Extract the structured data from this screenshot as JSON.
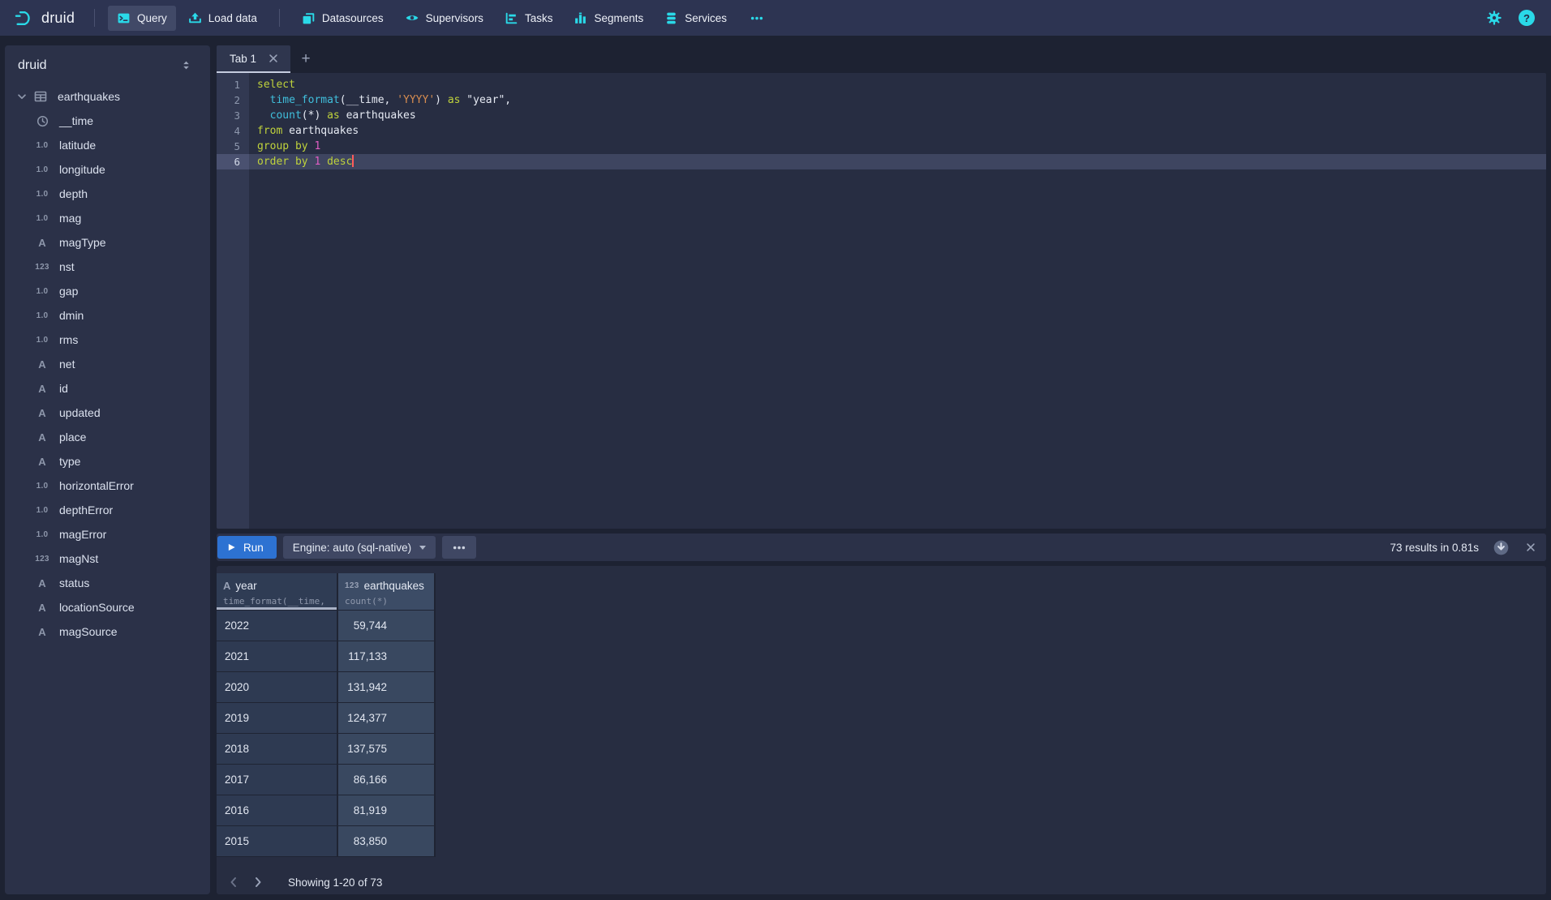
{
  "colors": {
    "accent_cyan": "#2ad9e8",
    "run_button_blue": "#2d72d2",
    "syntax_keyword": "#bfd23c",
    "syntax_function": "#40bfdc",
    "syntax_string": "#d78d50",
    "syntax_number": "#e05ec4",
    "cursor_red": "#ff5b5b"
  },
  "nav": {
    "brand": "druid",
    "items": [
      {
        "label": "Query",
        "icon": "console",
        "active": true,
        "group": 1
      },
      {
        "label": "Load data",
        "icon": "upload",
        "active": false,
        "group": 1
      },
      {
        "label": "Datasources",
        "icon": "datasources",
        "active": false,
        "group": 2
      },
      {
        "label": "Supervisors",
        "icon": "eye",
        "active": false,
        "group": 2
      },
      {
        "label": "Tasks",
        "icon": "gantt",
        "active": false,
        "group": 2
      },
      {
        "label": "Segments",
        "icon": "bar-chart",
        "active": false,
        "group": 2
      },
      {
        "label": "Services",
        "icon": "database",
        "active": false,
        "group": 2
      }
    ]
  },
  "sidebar": {
    "schema": "druid",
    "table": {
      "name": "earthquakes"
    },
    "columns": [
      {
        "name": "__time",
        "type": "time"
      },
      {
        "name": "latitude",
        "type": "float"
      },
      {
        "name": "longitude",
        "type": "float"
      },
      {
        "name": "depth",
        "type": "float"
      },
      {
        "name": "mag",
        "type": "float"
      },
      {
        "name": "magType",
        "type": "str"
      },
      {
        "name": "nst",
        "type": "int"
      },
      {
        "name": "gap",
        "type": "float"
      },
      {
        "name": "dmin",
        "type": "float"
      },
      {
        "name": "rms",
        "type": "float"
      },
      {
        "name": "net",
        "type": "str"
      },
      {
        "name": "id",
        "type": "str"
      },
      {
        "name": "updated",
        "type": "str"
      },
      {
        "name": "place",
        "type": "str"
      },
      {
        "name": "type",
        "type": "str"
      },
      {
        "name": "horizontalError",
        "type": "float"
      },
      {
        "name": "depthError",
        "type": "float"
      },
      {
        "name": "magError",
        "type": "float"
      },
      {
        "name": "magNst",
        "type": "int"
      },
      {
        "name": "status",
        "type": "str"
      },
      {
        "name": "locationSource",
        "type": "str"
      },
      {
        "name": "magSource",
        "type": "str"
      }
    ],
    "type_glyphs": {
      "float": "1.0",
      "int": "123",
      "str": "A"
    }
  },
  "editor": {
    "tab_label": "Tab 1",
    "active_line": 6,
    "lines": [
      [
        {
          "t": "kw",
          "v": "select"
        }
      ],
      [
        {
          "t": "pln",
          "v": "  "
        },
        {
          "t": "fn",
          "v": "time_format"
        },
        {
          "t": "pln",
          "v": "(__time, "
        },
        {
          "t": "str",
          "v": "'YYYY'"
        },
        {
          "t": "pln",
          "v": ") "
        },
        {
          "t": "kw",
          "v": "as"
        },
        {
          "t": "pln",
          "v": " \"year\","
        }
      ],
      [
        {
          "t": "pln",
          "v": "  "
        },
        {
          "t": "fn",
          "v": "count"
        },
        {
          "t": "pln",
          "v": "(*) "
        },
        {
          "t": "kw",
          "v": "as"
        },
        {
          "t": "pln",
          "v": " earthquakes"
        }
      ],
      [
        {
          "t": "kw",
          "v": "from"
        },
        {
          "t": "pln",
          "v": " earthquakes"
        }
      ],
      [
        {
          "t": "kw",
          "v": "group"
        },
        {
          "t": "pln",
          "v": " "
        },
        {
          "t": "kw",
          "v": "by"
        },
        {
          "t": "pln",
          "v": " "
        },
        {
          "t": "num",
          "v": "1"
        }
      ],
      [
        {
          "t": "kw",
          "v": "order"
        },
        {
          "t": "pln",
          "v": " "
        },
        {
          "t": "kw",
          "v": "by"
        },
        {
          "t": "pln",
          "v": " "
        },
        {
          "t": "num",
          "v": "1"
        },
        {
          "t": "pln",
          "v": " "
        },
        {
          "t": "kw",
          "v": "desc"
        }
      ]
    ]
  },
  "runbar": {
    "run_label": "Run",
    "engine_label": "Engine: auto (sql-native)",
    "result_summary": "73 results in 0.81s"
  },
  "results": {
    "columns": [
      {
        "name": "year",
        "type_glyph": "A",
        "expression": "time_format(__time, …",
        "sorted": true
      },
      {
        "name": "earthquakes",
        "type_glyph": "123",
        "expression": "count(*)",
        "sorted": false
      }
    ],
    "rows": [
      [
        "2022",
        "59,744"
      ],
      [
        "2021",
        "117,133"
      ],
      [
        "2020",
        "131,942"
      ],
      [
        "2019",
        "124,377"
      ],
      [
        "2018",
        "137,575"
      ],
      [
        "2017",
        "86,166"
      ],
      [
        "2016",
        "81,919"
      ],
      [
        "2015",
        "83,850"
      ]
    ],
    "pagination_label": "Showing 1-20 of 73"
  }
}
